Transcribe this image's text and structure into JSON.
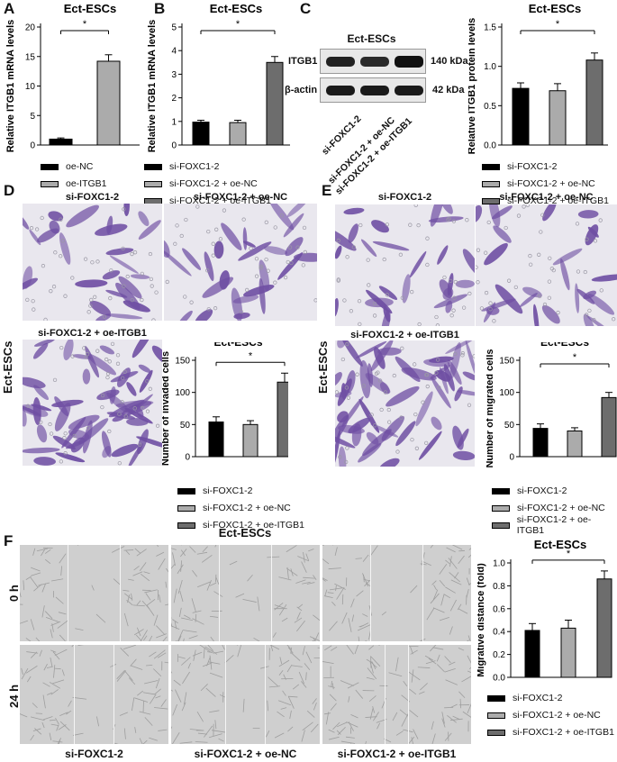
{
  "panels": {
    "A": "A",
    "B": "B",
    "C": "C",
    "D": "D",
    "E": "E",
    "F": "F"
  },
  "colors": {
    "black": "#000000",
    "light": "#ababab",
    "dark": "#6d6d6d",
    "stain": "#7a5aa8",
    "scratch": "#bdbdbd"
  },
  "common_title": "Ect-ESCs",
  "group_labels": [
    "si-FOXC1-2",
    "si-FOXC1-2 + oe-NC",
    "si-FOXC1-2 + oe-ITGB1"
  ],
  "sig_mark": "*",
  "western": {
    "title": "Ect-ESCs",
    "proteins": [
      "ITGB1",
      "β-actin"
    ],
    "sizes": [
      "140 kDa",
      "42 kDa"
    ],
    "lanes": [
      "si-FOXC1-2",
      "si-FOXC1-2 + oe-NC",
      "si-FOXC1-2 + oe-ITGB1"
    ]
  },
  "invasion": {
    "side_label": "Ect-ESCs",
    "headers": [
      "si-FOXC1-2",
      "si-FOXC1-2 + oe-NC",
      "si-FOXC1-2 + oe-ITGB1"
    ]
  },
  "migration": {
    "side_label": "Ect-ESCs",
    "headers": [
      "si-FOXC1-2",
      "si-FOXC1-2 + oe-NC",
      "si-FOXC1-2 + oe-ITGB1"
    ]
  },
  "wound": {
    "title": "Ect-ESCs",
    "rows": [
      "0 h",
      "24 h"
    ],
    "cols": [
      "si-FOXC1-2",
      "si-FOXC1-2 + oe-NC",
      "si-FOXC1-2 + oe-ITGB1"
    ]
  },
  "chart_data": [
    {
      "id": "A",
      "type": "bar",
      "title": "Ect-ESCs",
      "ylabel": "Relative ITGB1 mRNA levels",
      "ylim": [
        0,
        20
      ],
      "ticks": [
        0,
        5,
        10,
        15,
        20
      ],
      "categories": [
        "oe-NC",
        "oe-ITGB1"
      ],
      "values": [
        1.0,
        14.2
      ],
      "errors": [
        0.2,
        1.1
      ],
      "colors": [
        "#000000",
        "#ababab"
      ],
      "legend": [
        "oe-NC",
        "oe-ITGB1"
      ],
      "sig": [
        0,
        1
      ]
    },
    {
      "id": "B",
      "type": "bar",
      "title": "Ect-ESCs",
      "ylabel": "Relative ITGB1 mRNA levels",
      "ylim": [
        0,
        5
      ],
      "ticks": [
        0,
        1,
        2,
        3,
        4,
        5
      ],
      "categories": [
        "si-FOXC1-2",
        "si-FOXC1-2 + oe-NC",
        "si-FOXC1-2 + oe-ITGB1"
      ],
      "values": [
        0.97,
        0.95,
        3.5
      ],
      "errors": [
        0.08,
        0.1,
        0.25
      ],
      "colors": [
        "#000000",
        "#ababab",
        "#6d6d6d"
      ],
      "legend": [
        "si-FOXC1-2",
        "si-FOXC1-2 + oe-NC",
        "si-FOXC1-2 + oe-ITGB1"
      ],
      "sig": [
        0,
        2
      ]
    },
    {
      "id": "C",
      "type": "bar",
      "title": "Ect-ESCs",
      "ylabel": "Relative ITGB1 protein levels",
      "ylim": [
        0,
        1.5
      ],
      "ticks": [
        0.0,
        0.5,
        1.0,
        1.5
      ],
      "categories": [
        "si-FOXC1-2",
        "si-FOXC1-2 + oe-NC",
        "si-FOXC1-2 + oe-ITGB1"
      ],
      "values": [
        0.72,
        0.69,
        1.08
      ],
      "errors": [
        0.07,
        0.09,
        0.09
      ],
      "colors": [
        "#000000",
        "#ababab",
        "#6d6d6d"
      ],
      "legend": [
        "si-FOXC1-2",
        "si-FOXC1-2 + oe-NC",
        "si-FOXC1-2 + oe-ITGB1"
      ],
      "sig": [
        0,
        2
      ]
    },
    {
      "id": "D",
      "type": "bar",
      "title": "Ect-ESCs",
      "ylabel": "Number of invaded cells",
      "ylim": [
        0,
        150
      ],
      "ticks": [
        0,
        50,
        100,
        150
      ],
      "categories": [
        "si-FOXC1-2",
        "si-FOXC1-2 + oe-NC",
        "si-FOXC1-2 + oe-ITGB1"
      ],
      "values": [
        54,
        50,
        116
      ],
      "errors": [
        8,
        6,
        14
      ],
      "colors": [
        "#000000",
        "#ababab",
        "#6d6d6d"
      ],
      "legend": [
        "si-FOXC1-2",
        "si-FOXC1-2 + oe-NC",
        "si-FOXC1-2 + oe-ITGB1"
      ],
      "sig": [
        0,
        2
      ]
    },
    {
      "id": "E",
      "type": "bar",
      "title": "Ect-ESCs",
      "ylabel": "Number of migrated cells",
      "ylim": [
        0,
        150
      ],
      "ticks": [
        0,
        50,
        100,
        150
      ],
      "categories": [
        "si-FOXC1-2",
        "si-FOXC1-2 + oe-NC",
        "si-FOXC1-2 + oe-ITGB1"
      ],
      "values": [
        44,
        40,
        92
      ],
      "errors": [
        7,
        5,
        8
      ],
      "colors": [
        "#000000",
        "#ababab",
        "#6d6d6d"
      ],
      "legend": [
        "si-FOXC1-2",
        "si-FOXC1-2 + oe-NC",
        "si-FOXC1-2 + oe-ITGB1"
      ],
      "sig": [
        0,
        2
      ]
    },
    {
      "id": "F",
      "type": "bar",
      "title": "Ect-ESCs",
      "ylabel": "Migrative distance (fold)",
      "ylim": [
        0,
        1.0
      ],
      "ticks": [
        0.0,
        0.2,
        0.4,
        0.6,
        0.8,
        1.0
      ],
      "categories": [
        "si-FOXC1-2",
        "si-FOXC1-2 + oe-NC",
        "si-FOXC1-2 + oe-ITGB1"
      ],
      "values": [
        0.41,
        0.43,
        0.86
      ],
      "errors": [
        0.06,
        0.07,
        0.07
      ],
      "colors": [
        "#000000",
        "#ababab",
        "#6d6d6d"
      ],
      "legend": [
        "si-FOXC1-2",
        "si-FOXC1-2 + oe-NC",
        "si-FOXC1-2 + oe-ITGB1"
      ],
      "sig": [
        0,
        2
      ]
    }
  ]
}
